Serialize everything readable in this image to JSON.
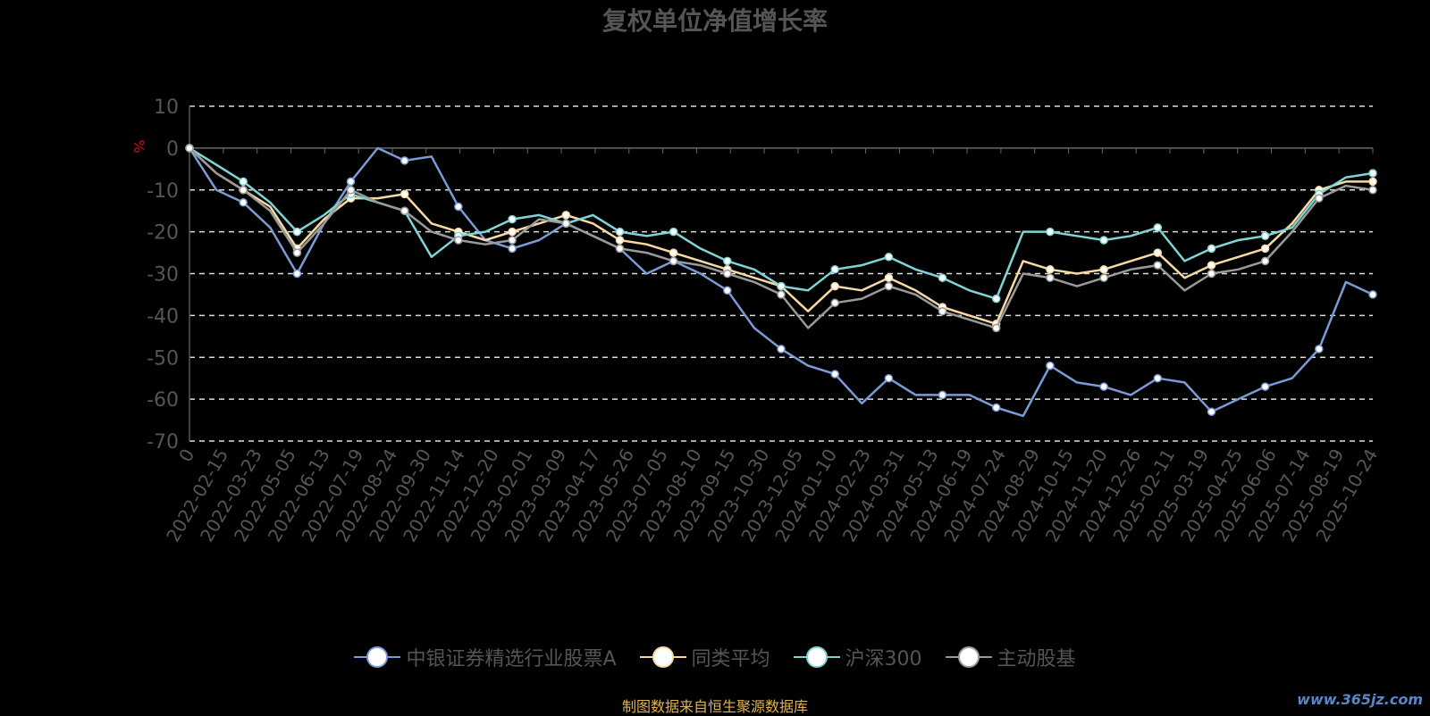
{
  "page": {
    "source_note": "制图数据来自恒生聚源数据库",
    "watermark": "www.365jz.com"
  },
  "chart_data": {
    "type": "line",
    "title": "复权单位净值增长率",
    "ylabel": "%",
    "ylim": [
      -70,
      10
    ],
    "yticks": [
      10,
      0,
      -10,
      -20,
      -30,
      -40,
      -50,
      -60,
      -70
    ],
    "grid": true,
    "legend_position": "bottom",
    "x_tick_labels": [
      "0",
      "2022-02-15",
      "2022-03-23",
      "2022-05-05",
      "2022-06-13",
      "2022-07-19",
      "2022-08-24",
      "2022-09-30",
      "2022-11-14",
      "2022-12-20",
      "2023-02-01",
      "2023-03-09",
      "2023-04-17",
      "2023-05-26",
      "2023-07-05",
      "2023-08-10",
      "2023-09-15",
      "2023-10-30",
      "2023-12-05",
      "2024-01-10",
      "2024-02-23",
      "2024-03-31",
      "2024-05-13",
      "2024-06-19",
      "2024-07-24",
      "2024-08-29",
      "2024-10-15",
      "2024-11-20",
      "2024-12-26",
      "2025-02-11",
      "2025-03-19",
      "2025-04-25",
      "2025-06-06",
      "2025-07-14",
      "2025-08-19",
      "2025-10-24"
    ],
    "series": [
      {
        "name": "中银证券精选行业股票A",
        "color": "#7b9bd6",
        "values": [
          0,
          -10,
          -13,
          -19,
          -30,
          -18,
          -8,
          0,
          -3,
          -2,
          -14,
          -22,
          -24,
          -22,
          -18,
          -21,
          -24,
          -30,
          -27,
          -30,
          -34,
          -43,
          -48,
          -52,
          -54,
          -61,
          -55,
          -59,
          -59,
          -59,
          -62,
          -64,
          -52,
          -56,
          -57,
          -59,
          -55,
          -56,
          -63,
          -60,
          -57,
          -55,
          -48,
          -32,
          -35
        ]
      },
      {
        "name": "同类平均",
        "color": "#f7d9a2",
        "values": [
          0,
          -6,
          -10,
          -14,
          -24,
          -17,
          -12,
          -12,
          -11,
          -18,
          -20,
          -22,
          -20,
          -18,
          -16,
          -18,
          -22,
          -23,
          -25,
          -27,
          -29,
          -31,
          -33,
          -39,
          -33,
          -34,
          -31,
          -34,
          -38,
          -40,
          -42,
          -27,
          -29,
          -30,
          -29,
          -27,
          -25,
          -31,
          -28,
          -26,
          -24,
          -18,
          -10,
          -8,
          -8
        ]
      },
      {
        "name": "沪深300",
        "color": "#7fd5d5",
        "values": [
          0,
          -4,
          -8,
          -13,
          -20,
          -16,
          -11,
          -13,
          -15,
          -26,
          -21,
          -20,
          -17,
          -16,
          -18,
          -16,
          -20,
          -21,
          -20,
          -24,
          -27,
          -29,
          -33,
          -34,
          -29,
          -28,
          -26,
          -29,
          -31,
          -34,
          -36,
          -20,
          -20,
          -21,
          -22,
          -21,
          -19,
          -27,
          -24,
          -22,
          -21,
          -19,
          -11,
          -7,
          -6
        ]
      },
      {
        "name": "主动股基",
        "color": "#9a9a9a",
        "values": [
          0,
          -6,
          -10,
          -15,
          -25,
          -18,
          -10,
          -13,
          -15,
          -20,
          -22,
          -23,
          -22,
          -17,
          -18,
          -21,
          -24,
          -25,
          -27,
          -28,
          -30,
          -32,
          -35,
          -43,
          -37,
          -36,
          -33,
          -35,
          -39,
          -41,
          -43,
          -30,
          -31,
          -33,
          -31,
          -29,
          -28,
          -34,
          -30,
          -29,
          -27,
          -20,
          -12,
          -9,
          -10
        ]
      }
    ]
  }
}
